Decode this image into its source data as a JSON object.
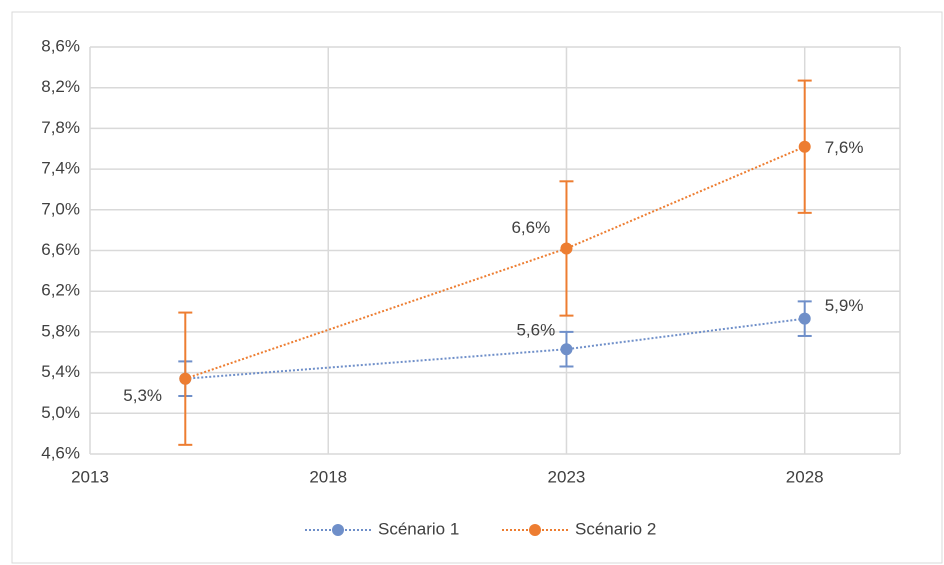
{
  "chart_data": {
    "type": "line",
    "x": [
      2015,
      2023,
      2028
    ],
    "series": [
      {
        "name": "Scénario 1",
        "color": "#6f8fc9",
        "values": [
          5.34,
          5.63,
          5.93
        ],
        "errors": [
          0.17,
          0.17,
          0.17
        ],
        "value_labels": [
          "5,3%",
          "5,6%",
          "5,9%"
        ]
      },
      {
        "name": "Scénario 2",
        "color": "#ed7d31",
        "values": [
          5.34,
          6.62,
          7.62
        ],
        "errors": [
          0.65,
          0.66,
          0.65
        ],
        "value_labels": [
          null,
          "6,6%",
          "7,6%"
        ]
      }
    ],
    "xlim": [
      2013,
      2030
    ],
    "xticks": [
      2013,
      2018,
      2023,
      2028
    ],
    "ylim": [
      4.6,
      8.6
    ],
    "yticks": [
      {
        "value": 4.6,
        "label": "4,6%"
      },
      {
        "value": 5.0,
        "label": "5,0%"
      },
      {
        "value": 5.4,
        "label": "5,4%"
      },
      {
        "value": 5.8,
        "label": "5,8%"
      },
      {
        "value": 6.2,
        "label": "6,2%"
      },
      {
        "value": 6.6,
        "label": "6,6%"
      },
      {
        "value": 7.0,
        "label": "7,0%"
      },
      {
        "value": 7.4,
        "label": "7,4%"
      },
      {
        "value": 7.8,
        "label": "7,8%"
      },
      {
        "value": 8.2,
        "label": "8,2%"
      },
      {
        "value": 8.6,
        "label": "8,6%"
      }
    ],
    "grid": true,
    "legend": "bottom"
  }
}
